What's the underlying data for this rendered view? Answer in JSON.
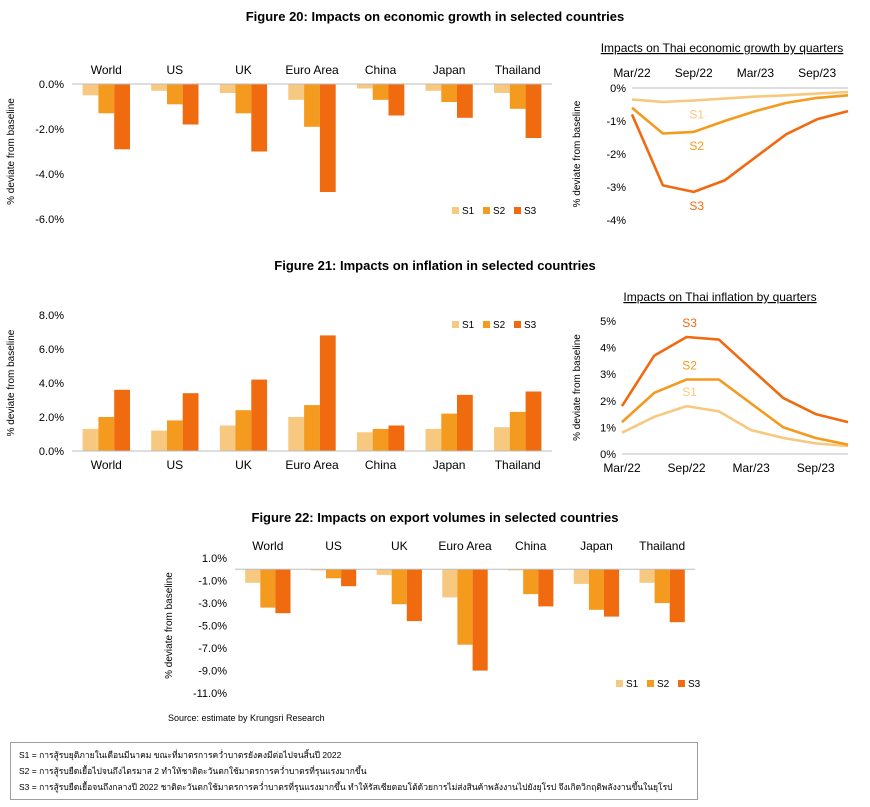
{
  "colors": {
    "S1": "#F7C87F",
    "S2": "#F49A1E",
    "S3": "#F06A10"
  },
  "figure20": {
    "title": "Figure 20: Impacts on economic growth in selected countries"
  },
  "figure21": {
    "title": "Figure 21: Impacts on inflation in selected countries"
  },
  "figure22": {
    "title": "Figure 22: Impacts on export volumes in selected countries"
  },
  "source": "Source: estimate by Krungsri Research",
  "notes": [
    "S1 = การสู้รบยุติภายในเดือนมีนาคม ขณะที่มาตรการคว่ำบาตรยังคงมีต่อไปจนสิ้นปี 2022",
    "S2 = การสู้รบยืดเยื้อไปจนถึงไตรมาส 2 ทำให้ชาติตะวันตกใช้มาตรการคว่ำบาตรที่รุนแรงมากขึ้น",
    "S3 = การสู้รบยืดเยื้อจนถึงกลางปี 2022 ชาติตะวันตกใช้มาตรการคว่ำบาตรที่รุนแรงมากขึ้น ทำให้รัสเซียตอบโต้ด้วยการไม่ส่งสินค้าพลังงานไปยังยุโรป จึงเกิดวิกฤติพลังงานขึ้นในยุโรป"
  ],
  "chart_data": [
    {
      "id": "growth",
      "type": "bar",
      "ylabel": "% deviate from baseline",
      "ylim": [
        -6,
        0
      ],
      "yticks": [
        0,
        -2,
        -4,
        -6
      ],
      "tick_labels": [
        "0.0%",
        "-2.0%",
        "-4.0%",
        "-6.0%"
      ],
      "categories": [
        "World",
        "US",
        "UK",
        "Euro Area",
        "China",
        "Japan",
        "Thailand"
      ],
      "series": [
        {
          "name": "S1",
          "values": [
            -0.5,
            -0.3,
            -0.4,
            -0.7,
            -0.2,
            -0.3,
            -0.4
          ]
        },
        {
          "name": "S2",
          "values": [
            -1.3,
            -0.9,
            -1.3,
            -1.9,
            -0.7,
            -0.8,
            -1.1
          ]
        },
        {
          "name": "S3",
          "values": [
            -2.9,
            -1.8,
            -3.0,
            -4.8,
            -1.4,
            -1.5,
            -2.4
          ]
        }
      ],
      "legend": "bottom-right"
    },
    {
      "id": "thai-growth",
      "type": "line",
      "title": "Impacts on Thai economic growth by quarters",
      "ylabel": "% deviate from baseline",
      "ylim": [
        -4,
        0
      ],
      "yticks": [
        0,
        -1,
        -2,
        -3,
        -4
      ],
      "tick_labels": [
        "0%",
        "-1%",
        "-2%",
        "-3%",
        "-4%"
      ],
      "x": [
        "Mar/22",
        "Jun/22",
        "Sep/22",
        "Dec/22",
        "Mar/23",
        "Jun/23",
        "Sep/23",
        "Dec/23"
      ],
      "x_tick_labels": [
        "Mar/22",
        "Sep/22",
        "Mar/23",
        "Sep/23"
      ],
      "series": [
        {
          "name": "S1",
          "values": [
            -0.35,
            -0.42,
            -0.38,
            -0.32,
            -0.26,
            -0.22,
            -0.17,
            -0.12
          ]
        },
        {
          "name": "S2",
          "values": [
            -0.6,
            -1.38,
            -1.33,
            -1.0,
            -0.7,
            -0.45,
            -0.3,
            -0.22
          ]
        },
        {
          "name": "S3",
          "values": [
            -0.8,
            -2.95,
            -3.15,
            -2.8,
            -2.1,
            -1.4,
            -0.95,
            -0.7
          ]
        }
      ]
    },
    {
      "id": "inflation",
      "type": "bar",
      "ylabel": "% deviate from baseline",
      "ylim": [
        0,
        8
      ],
      "yticks": [
        0,
        2,
        4,
        6,
        8
      ],
      "tick_labels": [
        "0.0%",
        "2.0%",
        "4.0%",
        "6.0%",
        "8.0%"
      ],
      "categories": [
        "World",
        "US",
        "UK",
        "Euro Area",
        "China",
        "Japan",
        "Thailand"
      ],
      "series": [
        {
          "name": "S1",
          "values": [
            1.3,
            1.2,
            1.5,
            2.0,
            1.1,
            1.3,
            1.4
          ]
        },
        {
          "name": "S2",
          "values": [
            2.0,
            1.8,
            2.4,
            2.7,
            1.3,
            2.2,
            2.3
          ]
        },
        {
          "name": "S3",
          "values": [
            3.6,
            3.4,
            4.2,
            6.8,
            1.5,
            3.3,
            3.5
          ]
        }
      ],
      "legend": "top-right"
    },
    {
      "id": "thai-inflation",
      "type": "line",
      "title": "Impacts on Thai inflation by quarters",
      "ylabel": "% deviate from baseline",
      "ylim": [
        0,
        5
      ],
      "yticks": [
        0,
        1,
        2,
        3,
        4,
        5
      ],
      "tick_labels": [
        "0%",
        "1%",
        "2%",
        "3%",
        "4%",
        "5%"
      ],
      "x": [
        "Mar/22",
        "Jun/22",
        "Sep/22",
        "Dec/22",
        "Mar/23",
        "Jun/23",
        "Sep/23",
        "Dec/23"
      ],
      "x_tick_labels": [
        "Mar/22",
        "Sep/22",
        "Mar/23",
        "Sep/23"
      ],
      "series": [
        {
          "name": "S1",
          "values": [
            0.8,
            1.4,
            1.8,
            1.6,
            0.9,
            0.6,
            0.4,
            0.3
          ]
        },
        {
          "name": "S2",
          "values": [
            1.2,
            2.3,
            2.8,
            2.8,
            1.9,
            1.0,
            0.6,
            0.35
          ]
        },
        {
          "name": "S3",
          "values": [
            1.8,
            3.7,
            4.4,
            4.3,
            3.2,
            2.1,
            1.5,
            1.2
          ]
        }
      ]
    },
    {
      "id": "exports",
      "type": "bar",
      "ylabel": "% deviate from baseline",
      "ylim": [
        -11,
        1
      ],
      "yticks": [
        1,
        -1,
        -3,
        -5,
        -7,
        -9,
        -11
      ],
      "tick_labels": [
        "1.0%",
        "-1.0%",
        "-3.0%",
        "-5.0%",
        "-7.0%",
        "-9.0%",
        "-11.0%"
      ],
      "categories": [
        "World",
        "US",
        "UK",
        "Euro Area",
        "China",
        "Japan",
        "Thailand"
      ],
      "series": [
        {
          "name": "S1",
          "values": [
            -1.2,
            -0.1,
            -0.5,
            -2.5,
            -0.1,
            -1.3,
            -1.2
          ]
        },
        {
          "name": "S2",
          "values": [
            -3.4,
            -0.8,
            -3.1,
            -6.7,
            -2.2,
            -3.6,
            -3.0
          ]
        },
        {
          "name": "S3",
          "values": [
            -3.9,
            -1.5,
            -4.6,
            -9.0,
            -3.3,
            -4.2,
            -4.7
          ]
        }
      ],
      "legend": "bottom-right"
    }
  ]
}
